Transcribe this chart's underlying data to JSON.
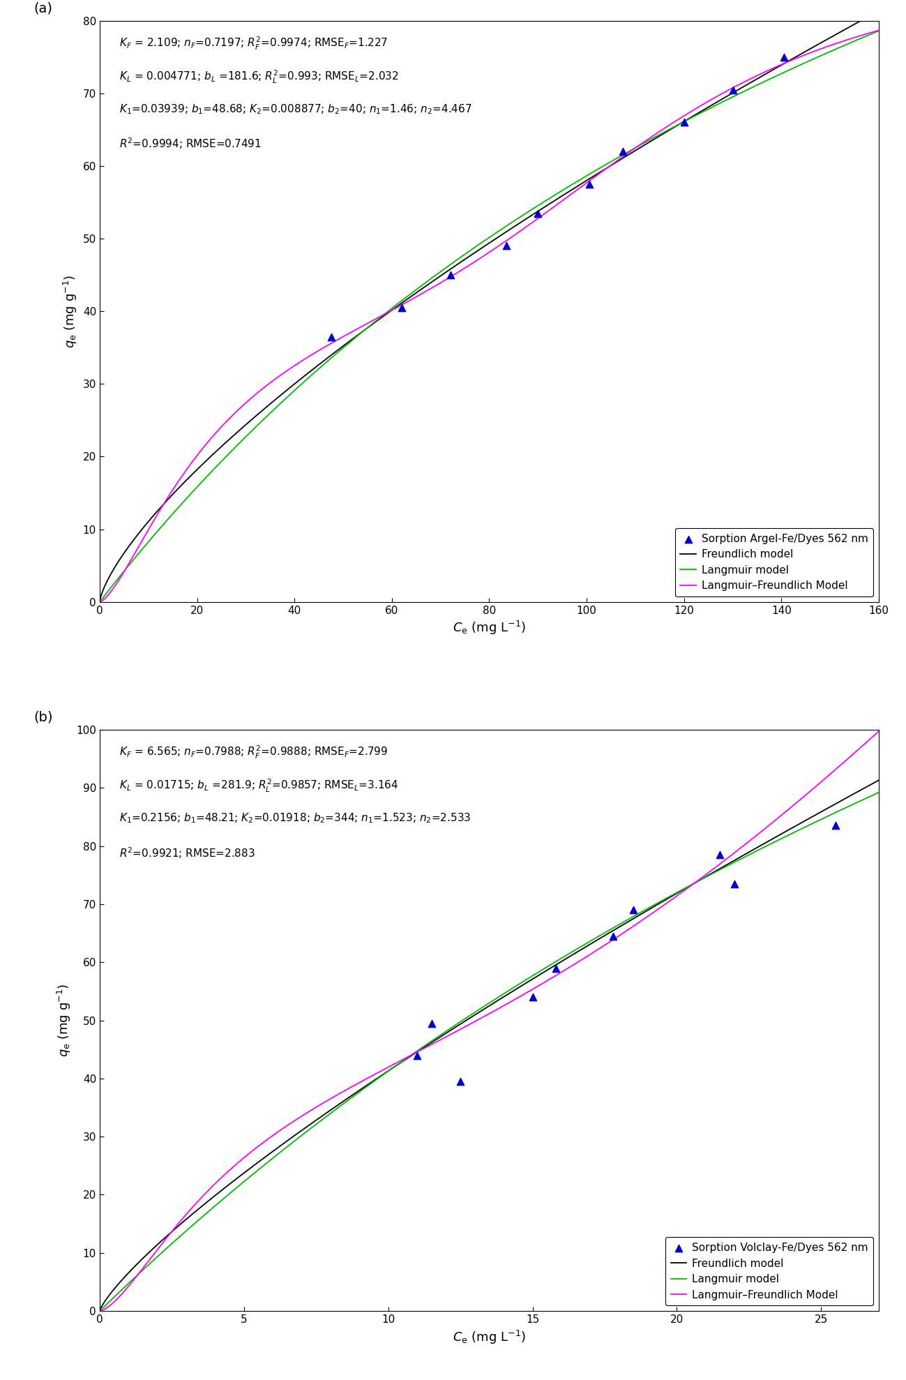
{
  "panel_a": {
    "title_label": "(a)",
    "scatter_x": [
      47.5,
      62.0,
      72.0,
      83.5,
      90.0,
      100.5,
      107.5,
      120.0,
      130.0,
      140.5
    ],
    "scatter_y": [
      36.5,
      40.5,
      45.0,
      49.0,
      53.5,
      57.5,
      62.0,
      66.0,
      70.5,
      75.0
    ],
    "scatter_color": "#0000cd",
    "xlim": [
      0,
      160
    ],
    "ylim": [
      0,
      80
    ],
    "xticks": [
      0,
      20,
      40,
      60,
      80,
      100,
      120,
      140,
      160
    ],
    "yticks": [
      0,
      10,
      20,
      30,
      40,
      50,
      60,
      70,
      80
    ],
    "xlabel": "$C_\\mathrm{e}$ (mg L$^{-1}$)",
    "ylabel": "$q_\\mathrm{e}$ (mg g$^{-1}$)",
    "KF": 2.109,
    "nF": 0.7197,
    "KL": 0.004771,
    "bL": 181.6,
    "K1": 0.03939,
    "b1": 48.68,
    "K2": 0.008877,
    "b2": 40,
    "n1": 1.46,
    "n2": 4.467,
    "ann1": "$K_F$ = 2.109; $n_F$=0.7197; $R_F^2$=0.9974; $\\mathrm{RMSE}_F$=1.227",
    "ann2": "$K_L$ = 0.004771; $b_L$ =181.6; $R_L^2$=0.993; $\\mathrm{RMSE}_L$=2.032",
    "ann3": "$K_1$=0.03939; $b_1$=48.68; $K_2$=0.008877; $b_2$=40; $n_1$=1.46; $n_2$=4.467",
    "ann4": "$R^2$=0.9994; RMSE=0.7491",
    "legend_label": "Sorption Argel-Fe/Dyes 562 nm"
  },
  "panel_b": {
    "title_label": "(b)",
    "scatter_x": [
      11.0,
      11.5,
      12.5,
      15.0,
      15.8,
      17.8,
      18.5,
      21.5,
      22.0,
      25.5
    ],
    "scatter_y": [
      44.0,
      49.5,
      39.5,
      54.0,
      59.0,
      64.5,
      69.0,
      78.5,
      73.5,
      83.5
    ],
    "scatter_color": "#0000cd",
    "xlim": [
      0,
      27
    ],
    "ylim": [
      0,
      100
    ],
    "xticks": [
      0,
      5,
      10,
      15,
      20,
      25
    ],
    "yticks": [
      0,
      10,
      20,
      30,
      40,
      50,
      60,
      70,
      80,
      90,
      100
    ],
    "xlabel": "$C_\\mathrm{e}$ (mg L$^{-1}$)",
    "ylabel": "$q_\\mathrm{e}$ (mg g$^{-1}$)",
    "KF": 6.565,
    "nF": 0.7988,
    "KL": 0.01715,
    "bL": 281.9,
    "K1": 0.2156,
    "b1": 48.21,
    "K2": 0.01918,
    "b2": 344,
    "n1": 1.523,
    "n2": 2.533,
    "ann1": "$K_F$ = 6.565; $n_F$=0.7988; $R_F^2$=0.9888; $\\mathrm{RMSE}_F$=2.799",
    "ann2": "$K_L$ = 0.01715; $b_L$ =281.9; $R_L^2$=0.9857; $\\mathrm{RMSE}_L$=3.164",
    "ann3": "$K_1$=0.2156; $b_1$=48.21; $K_2$=0.01918; $b_2$=344; $n_1$=1.523; $n_2$=2.533",
    "ann4": "$R^2$=0.9921; RMSE=2.883",
    "legend_label": "Sorption Volclay-Fe/Dyes 562 nm"
  },
  "freundlich_color": "#000000",
  "langmuir_color": "#00bb00",
  "langmuir_freundlich_color": "#ff00ff",
  "line_width": 1.3,
  "scatter_size": 55,
  "tick_fontsize": 11,
  "label_fontsize": 13,
  "ann_fontsize": 11,
  "legend_fontsize": 11
}
